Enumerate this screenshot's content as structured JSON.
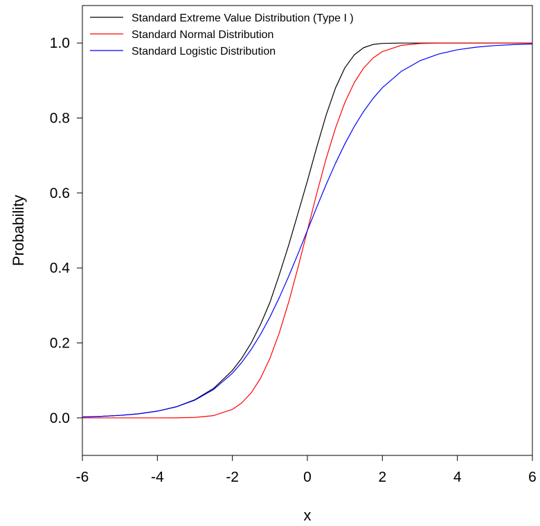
{
  "chart_data": {
    "type": "line",
    "title": "",
    "xlabel": "x",
    "ylabel": "Probability",
    "xlim": [
      -6,
      6
    ],
    "ylim": [
      -0.1,
      1.1
    ],
    "grid": false,
    "legend_position": "top-left",
    "x_ticks": [
      -6,
      -4,
      -2,
      0,
      2,
      4,
      6
    ],
    "x_tick_labels": [
      "-6",
      "-4",
      "-2",
      "0",
      "2",
      "4",
      "6"
    ],
    "y_ticks": [
      0,
      0.2,
      0.4,
      0.6,
      0.8,
      1.0
    ],
    "y_tick_labels": [
      "0.0",
      "0.2",
      "0.4",
      "0.6",
      "0.8",
      "1.0"
    ],
    "x": [
      -6,
      -5.5,
      -5,
      -4.5,
      -4,
      -3.5,
      -3,
      -2.5,
      -2,
      -1.75,
      -1.5,
      -1.25,
      -1,
      -0.75,
      -0.5,
      -0.25,
      0,
      0.25,
      0.5,
      0.75,
      1,
      1.25,
      1.5,
      1.75,
      2,
      2.5,
      3,
      3.5,
      4,
      4.5,
      5,
      5.5,
      6
    ],
    "series": [
      {
        "name": "Standard Extreme Value Distribution (Type I )",
        "color": "#000000",
        "values": [
          0.0025,
          0.0041,
          0.0067,
          0.011,
          0.0181,
          0.0297,
          0.0486,
          0.0788,
          0.1266,
          0.1592,
          0.1996,
          0.2492,
          0.3077,
          0.3818,
          0.4604,
          0.5459,
          0.6321,
          0.7224,
          0.8077,
          0.8802,
          0.934,
          0.9685,
          0.9876,
          0.9961,
          0.999,
          1.0,
          1.0,
          1.0,
          1.0,
          1.0,
          1.0,
          1.0,
          1.0
        ]
      },
      {
        "name": "Standard Normal Distribution",
        "color": "#ff0000",
        "values": [
          0.0,
          0.0,
          0.0,
          0.0,
          0.0,
          0.0002,
          0.0013,
          0.0062,
          0.0228,
          0.0401,
          0.0668,
          0.1056,
          0.1587,
          0.2266,
          0.3085,
          0.4013,
          0.5,
          0.5987,
          0.6915,
          0.7734,
          0.8413,
          0.8944,
          0.9332,
          0.9599,
          0.9772,
          0.9938,
          0.9987,
          0.9998,
          1.0,
          1.0,
          1.0,
          1.0,
          1.0
        ]
      },
      {
        "name": "Standard Logistic Distribution",
        "color": "#0000ff",
        "values": [
          0.0025,
          0.0041,
          0.0067,
          0.011,
          0.018,
          0.0293,
          0.0474,
          0.0759,
          0.1192,
          0.148,
          0.1824,
          0.2227,
          0.2689,
          0.3208,
          0.3775,
          0.4378,
          0.5,
          0.5622,
          0.6225,
          0.6792,
          0.7311,
          0.7773,
          0.8176,
          0.852,
          0.8808,
          0.9241,
          0.9526,
          0.9707,
          0.982,
          0.989,
          0.9933,
          0.9959,
          0.9975
        ]
      }
    ]
  }
}
